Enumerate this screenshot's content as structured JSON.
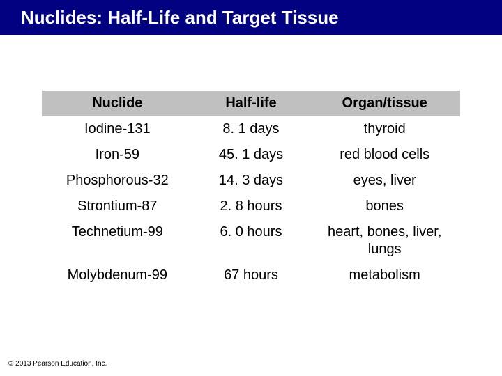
{
  "slide": {
    "title": "Nuclides: Half-Life and Target Tissue",
    "copyright": "© 2013 Pearson Education, Inc."
  },
  "table": {
    "type": "table",
    "columns": [
      "Nuclide",
      "Half-life",
      "Organ/tissue"
    ],
    "rows": [
      [
        "Iodine-131",
        "8. 1 days",
        "thyroid"
      ],
      [
        "Iron-59",
        "45. 1 days",
        "red blood cells"
      ],
      [
        "Phosphorous-32",
        "14. 3 days",
        "eyes, liver"
      ],
      [
        "Strontium-87",
        "2. 8 hours",
        "bones"
      ],
      [
        "Technetium-99",
        "6. 0 hours",
        "heart, bones, liver, lungs"
      ],
      [
        "Molybdenum-99",
        "67 hours",
        "metabolism"
      ]
    ],
    "header_bg": "#c0c0c0",
    "header_text_color": "#000000",
    "cell_bg": "#ffffff",
    "cell_text_color": "#000000",
    "font_size_pt": 15,
    "column_widths_pct": [
      36,
      28,
      36
    ]
  },
  "colors": {
    "title_bar_bg": "#000080",
    "title_text": "#ffffff",
    "page_bg": "#ffffff"
  }
}
